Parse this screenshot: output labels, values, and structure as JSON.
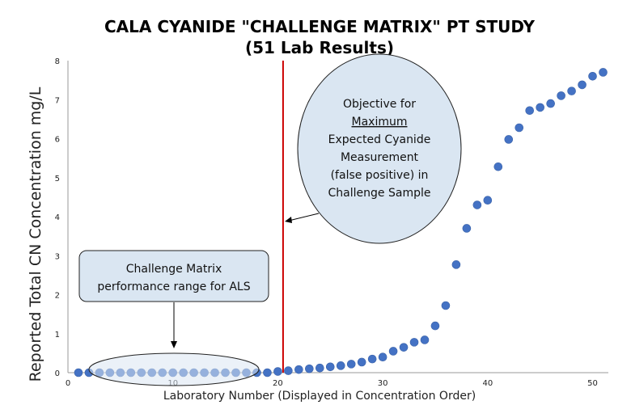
{
  "chart_data": {
    "type": "scatter",
    "title_lines": [
      "CALA CYANIDE \"CHALLENGE MATRIX\" PT STUDY",
      "(51 Lab Results)"
    ],
    "xlabel": "Laboratory Number (Displayed in Concentration Order)",
    "ylabel": "Reported Total CN Concentration mg/L",
    "xlim": [
      0,
      51.5
    ],
    "ylim": [
      0,
      8
    ],
    "x_ticks": [
      0,
      10,
      20,
      30,
      40,
      50
    ],
    "y_ticks": [
      0,
      1,
      2,
      3,
      4,
      5,
      6,
      7,
      8
    ],
    "grid": false,
    "marker_color": "#4472C4",
    "vertical_line": {
      "x": 20.5,
      "color": "#CC0000"
    },
    "x": [
      1,
      2,
      3,
      4,
      5,
      6,
      7,
      8,
      9,
      10,
      11,
      12,
      13,
      14,
      15,
      16,
      17,
      18,
      19,
      20,
      21,
      22,
      23,
      24,
      25,
      26,
      27,
      28,
      29,
      30,
      31,
      32,
      33,
      34,
      35,
      36,
      37,
      38,
      39,
      40,
      41,
      42,
      43,
      44,
      45,
      46,
      47,
      48,
      49,
      50,
      51
    ],
    "y": [
      0.0,
      0.0,
      0.0,
      0.0,
      0.0,
      0.0,
      0.0,
      0.0,
      0.0,
      0.0,
      0.0,
      0.0,
      0.0,
      0.0,
      0.0,
      0.0,
      0.0,
      0.0,
      0.0,
      0.03,
      0.05,
      0.08,
      0.1,
      0.12,
      0.15,
      0.18,
      0.22,
      0.27,
      0.35,
      0.4,
      0.55,
      0.65,
      0.78,
      0.84,
      1.2,
      1.72,
      2.77,
      3.7,
      4.3,
      4.42,
      5.28,
      5.98,
      6.28,
      6.72,
      6.8,
      6.9,
      7.1,
      7.22,
      7.38,
      7.6,
      7.7
    ],
    "annotations": [
      {
        "id": "objective",
        "lines": [
          "Objective for",
          "Maximum",
          "Expected Cyanide",
          "Measurement",
          "(false positive) in",
          "Challenge Sample"
        ],
        "underlined_line": 1
      },
      {
        "id": "als",
        "lines": [
          "Challenge Matrix",
          "performance range for ALS"
        ]
      }
    ]
  }
}
